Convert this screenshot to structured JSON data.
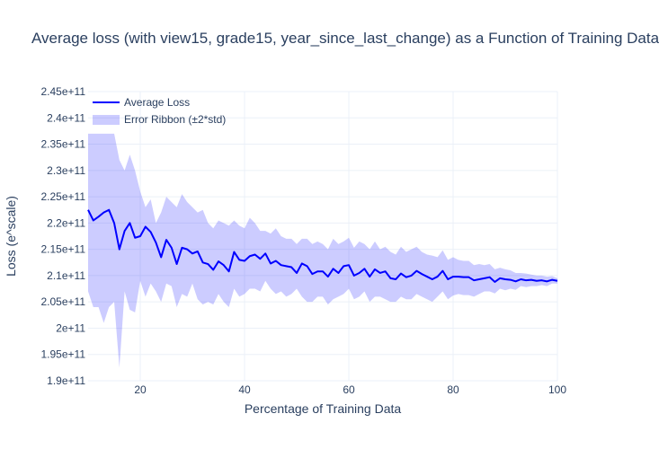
{
  "chart_data": {
    "type": "line",
    "title": "Average loss (with view15, grade15, year_since_last_change) as a Function of Training Data",
    "xlabel": "Percentage of Training Data",
    "ylabel": "Loss (e^scale)",
    "xlim": [
      10,
      100
    ],
    "ylim": [
      190000000000.0,
      245000000000.0
    ],
    "x_ticks": [
      20,
      40,
      60,
      80,
      100
    ],
    "x_tick_labels": [
      "20",
      "40",
      "60",
      "80",
      "100"
    ],
    "y_ticks": [
      190000000000.0,
      195000000000.0,
      200000000000.0,
      205000000000.0,
      210000000000.0,
      215000000000.0,
      220000000000.0,
      225000000000.0,
      230000000000.0,
      235000000000.0,
      240000000000.0,
      245000000000.0
    ],
    "y_tick_labels": [
      "1.9e+11",
      "1.95e+11",
      "2e+11",
      "2.05e+11",
      "2.1e+11",
      "2.15e+11",
      "2.2e+11",
      "2.25e+11",
      "2.3e+11",
      "2.35e+11",
      "2.4e+11",
      "2.45e+11"
    ],
    "grid": true,
    "legend_position": "top-left",
    "colors": {
      "line": "#0000ff",
      "ribbon": "rgba(0,0,255,0.2)"
    },
    "series": [
      {
        "name": "Average Loss",
        "x": [
          10,
          11,
          12,
          13,
          14,
          15,
          16,
          17,
          18,
          19,
          20,
          21,
          22,
          23,
          24,
          25,
          26,
          27,
          28,
          29,
          30,
          31,
          32,
          33,
          34,
          35,
          36,
          37,
          38,
          39,
          40,
          41,
          42,
          43,
          44,
          45,
          46,
          47,
          48,
          49,
          50,
          51,
          52,
          53,
          54,
          55,
          56,
          57,
          58,
          59,
          60,
          61,
          62,
          63,
          64,
          65,
          66,
          67,
          68,
          69,
          70,
          71,
          72,
          73,
          74,
          75,
          76,
          77,
          78,
          79,
          80,
          81,
          82,
          83,
          84,
          85,
          86,
          87,
          88,
          89,
          90,
          91,
          92,
          93,
          94,
          95,
          96,
          97,
          98,
          99,
          100
        ],
        "y": [
          222500000000.0,
          220500000000.0,
          221200000000.0,
          222000000000.0,
          222500000000.0,
          220000000000.0,
          215000000000.0,
          218500000000.0,
          220000000000.0,
          217200000000.0,
          217500000000.0,
          219300000000.0,
          218300000000.0,
          216300000000.0,
          213500000000.0,
          216800000000.0,
          215300000000.0,
          212200000000.0,
          215300000000.0,
          215000000000.0,
          214200000000.0,
          214600000000.0,
          212500000000.0,
          212200000000.0,
          211100000000.0,
          212700000000.0,
          212000000000.0,
          210800000000.0,
          214500000000.0,
          213000000000.0,
          212800000000.0,
          213700000000.0,
          214000000000.0,
          213200000000.0,
          214200000000.0,
          212300000000.0,
          212800000000.0,
          212000000000.0,
          211800000000.0,
          211600000000.0,
          210500000000.0,
          212300000000.0,
          211800000000.0,
          210300000000.0,
          210800000000.0,
          210800000000.0,
          209800000000.0,
          211300000000.0,
          210500000000.0,
          211800000000.0,
          212000000000.0,
          210000000000.0,
          210500000000.0,
          211300000000.0,
          209800000000.0,
          211200000000.0,
          210500000000.0,
          210800000000.0,
          209500000000.0,
          209300000000.0,
          210400000000.0,
          209700000000.0,
          210000000000.0,
          210900000000.0,
          210300000000.0,
          209800000000.0,
          209300000000.0,
          209800000000.0,
          210900000000.0,
          209300000000.0,
          209800000000.0,
          209800000000.0,
          209700000000.0,
          209700000000.0,
          209100000000.0,
          209300000000.0,
          209500000000.0,
          209700000000.0,
          208800000000.0,
          209500000000.0,
          209300000000.0,
          209200000000.0,
          208900000000.0,
          209300000000.0,
          209100000000.0,
          209200000000.0,
          209000000000.0,
          209100000000.0,
          208900000000.0,
          209200000000.0,
          209000000000.0
        ]
      },
      {
        "name": "Error Ribbon (±2*std)",
        "x": [
          10,
          11,
          12,
          13,
          14,
          15,
          16,
          17,
          18,
          19,
          20,
          21,
          22,
          23,
          24,
          25,
          26,
          27,
          28,
          29,
          30,
          31,
          32,
          33,
          34,
          35,
          36,
          37,
          38,
          39,
          40,
          41,
          42,
          43,
          44,
          45,
          46,
          47,
          48,
          49,
          50,
          51,
          52,
          53,
          54,
          55,
          56,
          57,
          58,
          59,
          60,
          61,
          62,
          63,
          64,
          65,
          66,
          67,
          68,
          69,
          70,
          71,
          72,
          73,
          74,
          75,
          76,
          77,
          78,
          79,
          80,
          81,
          82,
          83,
          84,
          85,
          86,
          87,
          88,
          89,
          90,
          91,
          92,
          93,
          94,
          95,
          96,
          97,
          98,
          99,
          100
        ],
        "upper": [
          237000000000.0,
          237000000000.0,
          237000000000.0,
          237000000000.0,
          237000000000.0,
          237000000000.0,
          232000000000.0,
          230000000000.0,
          233000000000.0,
          230000000000.0,
          226000000000.0,
          223000000000.0,
          224500000000.0,
          220000000000.0,
          222000000000.0,
          225000000000.0,
          224000000000.0,
          223000000000.0,
          225500000000.0,
          224000000000.0,
          223000000000.0,
          222000000000.0,
          222500000000.0,
          220000000000.0,
          219000000000.0,
          220500000000.0,
          220000000000.0,
          219500000000.0,
          220500000000.0,
          219500000000.0,
          219000000000.0,
          221000000000.0,
          220000000000.0,
          218500000000.0,
          218500000000.0,
          218000000000.0,
          219000000000.0,
          217500000000.0,
          217000000000.0,
          217000000000.0,
          216000000000.0,
          217000000000.0,
          217000000000.0,
          216000000000.0,
          216500000000.0,
          216000000000.0,
          215000000000.0,
          217000000000.0,
          216000000000.0,
          216500000000.0,
          217200000000.0,
          215300000000.0,
          216500000000.0,
          216000000000.0,
          215000000000.0,
          216500000000.0,
          215000000000.0,
          215500000000.0,
          214500000000.0,
          214000000000.0,
          215500000000.0,
          214500000000.0,
          215000000000.0,
          215500000000.0,
          214500000000.0,
          214000000000.0,
          213800000000.0,
          213500000000.0,
          214800000000.0,
          213000000000.0,
          213500000000.0,
          213000000000.0,
          212800000000.0,
          212800000000.0,
          212000000000.0,
          212200000000.0,
          212000000000.0,
          212200000000.0,
          211200000000.0,
          211500000000.0,
          211200000000.0,
          211000000000.0,
          210500000000.0,
          210500000000.0,
          210400000000.0,
          210200000000.0,
          210000000000.0,
          210000000000.0,
          209800000000.0,
          209900000000.0,
          209500000000.0
        ],
        "lower": [
          207000000000.0,
          204000000000.0,
          204000000000.0,
          201000000000.0,
          204000000000.0,
          205000000000.0,
          192500000000.0,
          207000000000.0,
          203500000000.0,
          203000000000.0,
          209000000000.0,
          206000000000.0,
          208500000000.0,
          207000000000.0,
          205000000000.0,
          208500000000.0,
          208000000000.0,
          204000000000.0,
          206500000000.0,
          206000000000.0,
          208500000000.0,
          205500000000.0,
          204500000000.0,
          205000000000.0,
          204500000000.0,
          206500000000.0,
          205000000000.0,
          204000000000.0,
          207500000000.0,
          206000000000.0,
          206500000000.0,
          207500000000.0,
          207500000000.0,
          207000000000.0,
          209000000000.0,
          207500000000.0,
          206500000000.0,
          207000000000.0,
          206000000000.0,
          206500000000.0,
          207500000000.0,
          206000000000.0,
          205000000000.0,
          205000000000.0,
          206000000000.0,
          206000000000.0,
          204500000000.0,
          205500000000.0,
          206000000000.0,
          206500000000.0,
          207500000000.0,
          205500000000.0,
          206000000000.0,
          207000000000.0,
          205000000000.0,
          206000000000.0,
          206000000000.0,
          205500000000.0,
          205000000000.0,
          205000000000.0,
          206000000000.0,
          205500000000.0,
          205500000000.0,
          206500000000.0,
          206000000000.0,
          205500000000.0,
          205000000000.0,
          206000000000.0,
          207000000000.0,
          205500000000.0,
          206200000000.0,
          206500000000.0,
          206300000000.0,
          206300000000.0,
          206000000000.0,
          206500000000.0,
          207000000000.0,
          207000000000.0,
          206600000000.0,
          207500000000.0,
          207200000000.0,
          207500000000.0,
          207300000000.0,
          208000000000.0,
          207800000000.0,
          208000000000.0,
          208000000000.0,
          208200000000.0,
          208000000000.0,
          208500000000.0,
          208500000000.0
        ]
      }
    ]
  }
}
